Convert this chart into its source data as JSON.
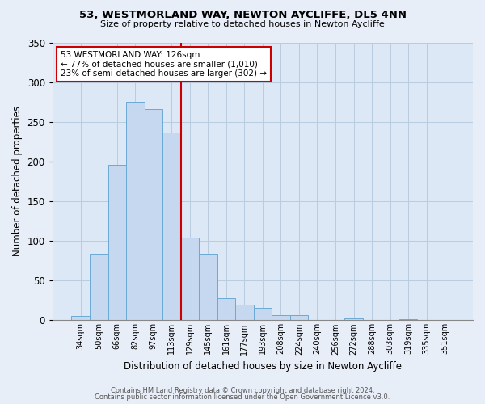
{
  "title1": "53, WESTMORLAND WAY, NEWTON AYCLIFFE, DL5 4NN",
  "title2": "Size of property relative to detached houses in Newton Aycliffe",
  "xlabel": "Distribution of detached houses by size in Newton Aycliffe",
  "ylabel": "Number of detached properties",
  "bar_values": [
    5,
    84,
    196,
    275,
    266,
    237,
    104,
    84,
    28,
    20,
    16,
    7,
    6,
    0,
    0,
    2,
    0,
    0,
    1,
    0,
    0
  ],
  "bar_labels": [
    "34sqm",
    "50sqm",
    "66sqm",
    "82sqm",
    "97sqm",
    "113sqm",
    "129sqm",
    "145sqm",
    "161sqm",
    "177sqm",
    "193sqm",
    "208sqm",
    "224sqm",
    "240sqm",
    "256sqm",
    "272sqm",
    "288sqm",
    "303sqm",
    "319sqm",
    "335sqm",
    "351sqm"
  ],
  "bar_color": "#c5d8f0",
  "bar_edge_color": "#6aaad4",
  "vline_x": 5.5,
  "vline_color": "#cc0000",
  "annotation_title": "53 WESTMORLAND WAY: 126sqm",
  "annotation_line1": "← 77% of detached houses are smaller (1,010)",
  "annotation_line2": "23% of semi-detached houses are larger (302) →",
  "annotation_box_color": "#ffffff",
  "annotation_box_edge": "#cc0000",
  "ylim": [
    0,
    350
  ],
  "yticks": [
    0,
    50,
    100,
    150,
    200,
    250,
    300,
    350
  ],
  "footer1": "Contains HM Land Registry data © Crown copyright and database right 2024.",
  "footer2": "Contains public sector information licensed under the Open Government Licence v3.0.",
  "bg_color": "#e8eef8",
  "plot_bg_color": "#dce8f5"
}
